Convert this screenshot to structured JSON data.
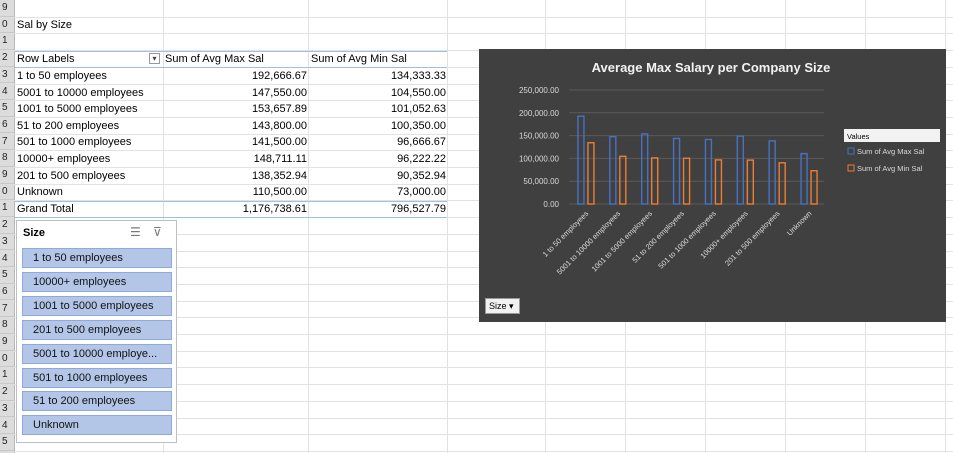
{
  "row_headers": [
    "9",
    "0",
    "1",
    "2",
    "3",
    "4",
    "5",
    "6",
    "7",
    "8",
    "9",
    "0",
    "1",
    "2",
    "3",
    "4",
    "5",
    "6",
    "7",
    "8",
    "9",
    "0",
    "1",
    "2",
    "3",
    "4",
    "5"
  ],
  "sheet_title": "Sal by Size",
  "pivot": {
    "header": [
      "Row Labels",
      "Sum of Avg Max Sal",
      "Sum of Avg Min Sal"
    ],
    "rows": [
      [
        "1 to 50 employees",
        "192,666.67",
        "134,333.33"
      ],
      [
        "5001 to 10000 employees",
        "147,550.00",
        "104,550.00"
      ],
      [
        "1001 to 5000 employees",
        "153,657.89",
        "101,052.63"
      ],
      [
        "51 to 200 employees",
        "143,800.00",
        "100,350.00"
      ],
      [
        "501 to 1000 employees",
        "141,500.00",
        "96,666.67"
      ],
      [
        "10000+ employees",
        "148,711.11",
        "96,222.22"
      ],
      [
        "201 to 500 employees",
        "138,352.94",
        "90,352.94"
      ],
      [
        "Unknown",
        "110,500.00",
        "73,000.00"
      ]
    ],
    "total": [
      "Grand Total",
      "1,176,738.61",
      "796,527.79"
    ]
  },
  "slicer": {
    "title": "Size",
    "items": [
      "1 to 50 employees",
      "10000+ employees",
      "1001 to 5000 employees",
      "201 to 500 employees",
      "5001 to 10000 employe...",
      "501 to 1000 employees",
      "51 to 200 employees",
      "Unknown"
    ]
  },
  "size_button_label": "Size",
  "chart_data": {
    "type": "bar",
    "title": "Average Max Salary per Company Size",
    "categories": [
      "1 to 50 employees",
      "5001 to 10000 employees",
      "1001 to 5000 employees",
      "51 to 200 employees",
      "501 to 1000 employees",
      "10000+ employees",
      "201 to 500 employees",
      "Unknown"
    ],
    "series": [
      {
        "name": "Sum of Avg Max Sal",
        "values": [
          192666.67,
          147550.0,
          153657.89,
          143800.0,
          141500.0,
          148711.11,
          138352.94,
          110500.0
        ],
        "color": "#4472c4"
      },
      {
        "name": "Sum of Avg Min Sal",
        "values": [
          134333.33,
          104550.0,
          101052.63,
          100350.0,
          96666.67,
          96222.22,
          90352.94,
          73000.0
        ],
        "color": "#ed7d31"
      }
    ],
    "ylim": [
      0,
      250000
    ],
    "yticks": [
      "0.00",
      "50,000.00",
      "100,000.00",
      "150,000.00",
      "200,000.00",
      "250,000.00"
    ],
    "legend_title": "Values",
    "legend_placement": "right",
    "grid": true
  },
  "colors": {
    "chart_bg": "#404040",
    "slicer_item": "#b4c6e7",
    "pivot_border": "#9bc2e6"
  }
}
